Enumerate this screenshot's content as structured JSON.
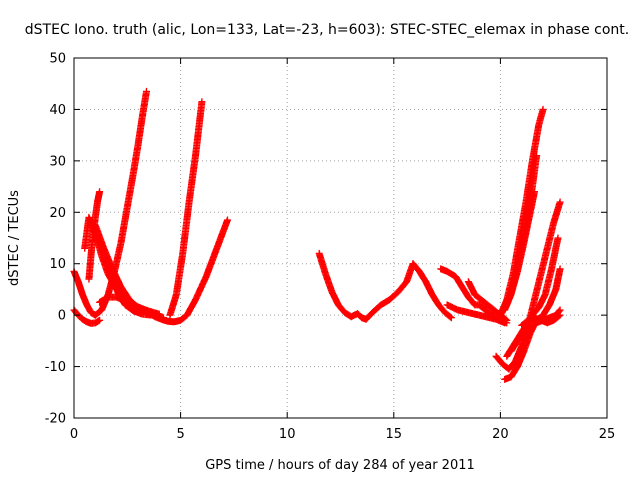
{
  "chart_data": {
    "type": "scatter",
    "title": "dSTEC Iono. truth (alic, Lon=133, Lat=-23, h=603): STEC-STEC_elemax in phase cont.",
    "xlabel": "GPS time / hours of day 284 of year 2011",
    "ylabel": "dSTEC  / TECUs",
    "xlim": [
      0,
      25
    ],
    "ylim": [
      -20,
      50
    ],
    "xticks": [
      0,
      5,
      10,
      15,
      20,
      25
    ],
    "yticks": [
      -20,
      -10,
      0,
      10,
      20,
      30,
      40,
      50
    ],
    "grid": true,
    "marker": "plus",
    "color": "#ff0000",
    "series": [
      {
        "x": [
          0.0,
          0.2,
          0.4,
          0.6,
          0.8,
          1.0
        ],
        "y": [
          8.5,
          6.5,
          4.0,
          2.0,
          0.5,
          0.0
        ]
      },
      {
        "x": [
          0.0,
          0.2,
          0.4,
          0.6,
          0.8,
          1.0,
          1.2
        ],
        "y": [
          1.0,
          0.0,
          -0.8,
          -1.3,
          -1.6,
          -1.5,
          -1.0
        ]
      },
      {
        "x": [
          0.5,
          0.7,
          0.9,
          1.1,
          1.3,
          1.6,
          2.0,
          2.5,
          3.0,
          3.5,
          4.0
        ],
        "y": [
          13.0,
          19.0,
          17.0,
          14.5,
          11.5,
          8.0,
          5.0,
          2.8,
          1.6,
          0.8,
          0.2
        ]
      },
      {
        "x": [
          0.7,
          0.85,
          1.0,
          1.1,
          1.2
        ],
        "y": [
          7.0,
          14.0,
          19.0,
          22.0,
          24.0
        ]
      },
      {
        "x": [
          1.0,
          1.4,
          1.8,
          2.2,
          2.6,
          3.0,
          3.4,
          3.8,
          4.2
        ],
        "y": [
          17.5,
          13.0,
          9.0,
          5.5,
          3.0,
          1.5,
          0.5,
          -0.2,
          -0.5
        ]
      },
      {
        "x": [
          1.0,
          1.3,
          1.6,
          1.9,
          2.2,
          2.5,
          2.8,
          3.0,
          3.2,
          3.4
        ],
        "y": [
          0.0,
          1.0,
          4.0,
          8.5,
          14.0,
          21.0,
          28.0,
          33.0,
          38.5,
          43.5
        ]
      },
      {
        "x": [
          1.2,
          1.6,
          2.0,
          2.4,
          2.8,
          3.2,
          3.6
        ],
        "y": [
          2.5,
          3.5,
          3.5,
          2.8,
          1.8,
          1.0,
          0.3
        ]
      },
      {
        "x": [
          1.5,
          1.8,
          2.1,
          2.4,
          2.8,
          3.2,
          3.6
        ],
        "y": [
          11.0,
          7.0,
          4.0,
          2.0,
          0.8,
          0.2,
          0.0
        ]
      },
      {
        "x": [
          3.5,
          3.8,
          4.1,
          4.4,
          4.7,
          5.0,
          5.3,
          5.7,
          6.2,
          6.7,
          7.2
        ],
        "y": [
          0.5,
          -0.3,
          -0.8,
          -1.2,
          -1.3,
          -1.0,
          0.0,
          3.0,
          7.5,
          13.0,
          18.5
        ]
      },
      {
        "x": [
          4.5,
          4.8,
          5.1,
          5.4,
          5.7,
          6.0
        ],
        "y": [
          0.0,
          4.0,
          12.0,
          22.0,
          31.0,
          41.5
        ]
      },
      {
        "x": [
          11.5,
          11.8,
          12.1,
          12.4,
          12.7,
          13.0,
          13.3,
          13.5,
          13.7,
          14.0,
          14.4,
          14.8,
          15.2,
          15.6,
          15.9
        ],
        "y": [
          12.0,
          8.0,
          4.5,
          2.0,
          0.5,
          -0.3,
          0.3,
          -0.5,
          -0.8,
          0.5,
          2.0,
          3.0,
          4.5,
          6.5,
          10.0
        ]
      },
      {
        "x": [
          15.9,
          16.2,
          16.5,
          16.8,
          17.1,
          17.4,
          17.7
        ],
        "y": [
          10.0,
          8.5,
          6.5,
          4.0,
          2.0,
          0.5,
          -0.5
        ]
      },
      {
        "x": [
          17.2,
          17.5,
          17.9,
          18.2,
          18.5,
          18.8,
          19.0,
          19.3,
          19.6,
          19.9,
          20.2
        ],
        "y": [
          9.0,
          8.5,
          7.5,
          5.5,
          3.5,
          2.0,
          2.0,
          1.0,
          0.0,
          -1.0,
          -1.5
        ]
      },
      {
        "x": [
          17.5,
          18.0,
          18.5,
          19.0,
          19.5,
          20.0,
          20.3
        ],
        "y": [
          2.0,
          1.0,
          0.5,
          0.0,
          -0.5,
          -1.0,
          -1.5
        ]
      },
      {
        "x": [
          18.5,
          18.8,
          19.1,
          19.4,
          19.7,
          20.0,
          20.3
        ],
        "y": [
          6.5,
          4.0,
          3.0,
          2.0,
          1.0,
          0.0,
          -1.0
        ]
      },
      {
        "x": [
          20.0,
          20.3,
          20.6,
          20.9,
          21.2,
          21.5,
          21.8,
          22.0
        ],
        "y": [
          0.0,
          3.0,
          8.0,
          15.0,
          22.0,
          30.0,
          37.0,
          40.0
        ]
      },
      {
        "x": [
          20.0,
          20.3,
          20.6,
          20.9,
          21.2,
          21.5,
          21.7
        ],
        "y": [
          0.0,
          2.0,
          6.0,
          11.0,
          17.0,
          25.0,
          31.0
        ]
      },
      {
        "x": [
          20.2,
          20.5,
          20.8,
          21.1,
          21.4,
          21.6
        ],
        "y": [
          1.0,
          4.0,
          8.5,
          14.0,
          20.0,
          24.0
        ]
      },
      {
        "x": [
          19.8,
          20.1,
          20.4,
          20.7,
          21.0,
          21.3,
          21.6,
          21.9,
          22.2,
          22.5,
          22.8
        ],
        "y": [
          -8.0,
          -9.5,
          -10.5,
          -9.0,
          -6.0,
          -2.0,
          3.0,
          8.0,
          13.0,
          18.0,
          22.0
        ]
      },
      {
        "x": [
          20.3,
          20.6,
          20.9,
          21.2,
          21.5,
          21.8,
          22.1,
          22.4,
          22.7
        ],
        "y": [
          -8.0,
          -6.0,
          -4.0,
          -2.0,
          0.0,
          1.5,
          4.0,
          9.0,
          15.0
        ]
      },
      {
        "x": [
          20.2,
          20.5,
          20.8,
          21.1,
          21.4,
          21.7,
          22.0,
          22.3,
          22.6,
          22.8
        ],
        "y": [
          -12.5,
          -12.0,
          -10.0,
          -7.0,
          -3.5,
          -1.0,
          0.0,
          2.0,
          5.0,
          9.0
        ]
      },
      {
        "x": [
          20.5,
          20.8,
          21.1,
          21.4,
          21.7,
          22.0,
          22.3,
          22.6,
          22.8
        ],
        "y": [
          -7.0,
          -5.0,
          -3.5,
          -2.5,
          -1.5,
          -1.0,
          -0.5,
          0.0,
          1.0
        ]
      },
      {
        "x": [
          21.0,
          21.3,
          21.6,
          21.9,
          22.2,
          22.5,
          22.8
        ],
        "y": [
          -2.0,
          -1.0,
          -0.5,
          -1.0,
          -1.5,
          -1.0,
          0.0
        ]
      }
    ]
  }
}
